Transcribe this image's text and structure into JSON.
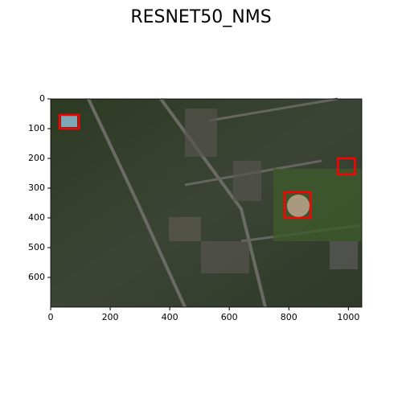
{
  "chart_data": {
    "type": "image",
    "title": "RESNET50_NMS",
    "xlim": [
      0,
      1045
    ],
    "ylim": [
      700,
      0
    ],
    "xticks": [
      0,
      200,
      400,
      600,
      800,
      1000
    ],
    "yticks": [
      0,
      100,
      200,
      300,
      400,
      500,
      600
    ],
    "box_color": "#ff0000",
    "boxes": [
      {
        "x": [
          30,
          95
        ],
        "y": [
          54,
          100
        ]
      },
      {
        "x": [
          786,
          873
        ],
        "y": [
          314,
          400
        ]
      },
      {
        "x": [
          965,
          1022
        ],
        "y": [
          200,
          254
        ]
      }
    ]
  }
}
